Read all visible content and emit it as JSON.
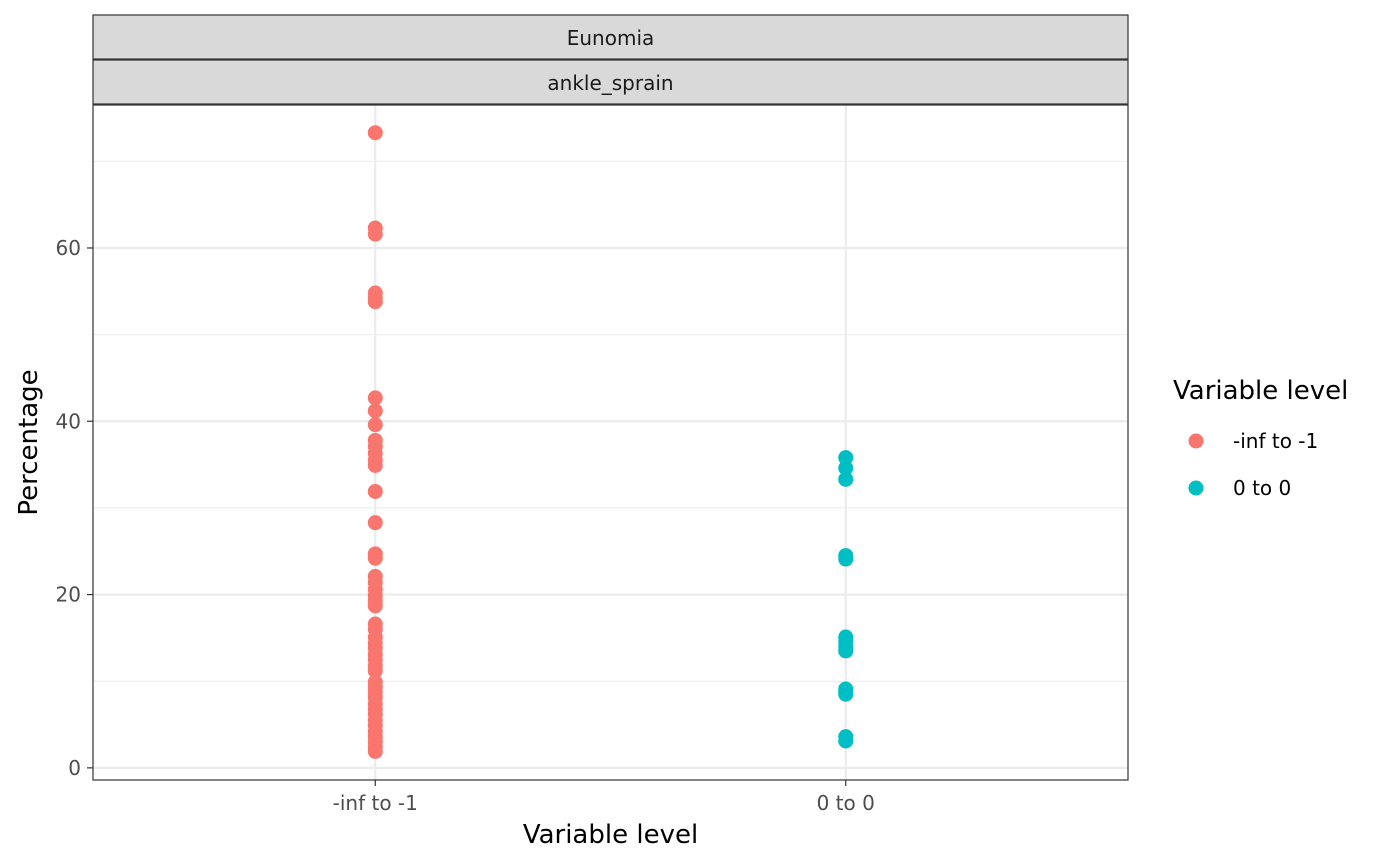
{
  "chart_data": {
    "type": "scatter",
    "facets": [
      "Eunomia",
      "ankle_sprain"
    ],
    "xlabel": "Variable level",
    "ylabel": "Percentage",
    "categories": [
      "-inf to -1",
      "0 to 0"
    ],
    "ylim": [
      -1.4,
      76.5
    ],
    "yticks": [
      0,
      20,
      40,
      60
    ],
    "grid": true,
    "legend": {
      "title": "Variable level",
      "position": "right",
      "entries": [
        "-inf to -1",
        "0 to 0"
      ]
    },
    "series": [
      {
        "name": "-inf to -1",
        "color": "#F8766D",
        "x": "-inf to -1",
        "values": [
          73.3,
          62.3,
          61.6,
          54.8,
          54.2,
          53.8,
          42.7,
          41.2,
          39.6,
          37.8,
          37.1,
          36.3,
          35.5,
          34.9,
          31.9,
          28.3,
          24.7,
          24.2,
          22.1,
          21.4,
          20.6,
          19.9,
          19.3,
          18.7,
          16.6,
          16.0,
          15.1,
          14.4,
          13.8,
          13.1,
          12.5,
          11.8,
          11.2,
          9.9,
          9.3,
          8.7,
          8.1,
          7.4,
          6.8,
          6.2,
          5.5,
          4.9,
          4.2,
          3.6,
          3.0,
          2.4,
          1.9
        ]
      },
      {
        "name": "0 to 0",
        "color": "#00BFC4",
        "x": "0 to 0",
        "values": [
          35.8,
          34.6,
          33.3,
          24.5,
          24.1,
          15.1,
          14.6,
          14.0,
          13.5,
          9.1,
          8.8,
          8.5,
          3.6,
          3.1
        ]
      }
    ]
  }
}
